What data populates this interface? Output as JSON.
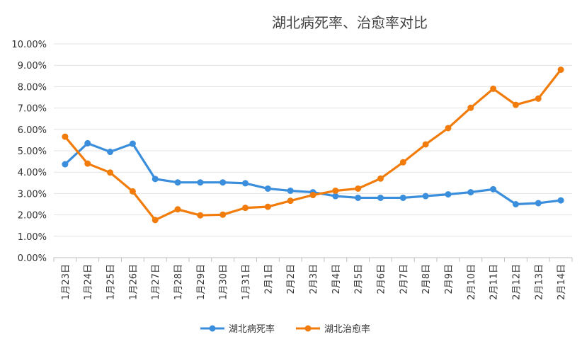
{
  "chart_data": {
    "type": "line",
    "title": "湖北病死率、治愈率对比",
    "categories": [
      "1月23日",
      "1月24日",
      "1月25日",
      "1月26日",
      "1月27日",
      "1月28日",
      "1月29日",
      "1月30日",
      "1月31日",
      "2月1日",
      "2月2日",
      "2月3日",
      "2月4日",
      "2月5日",
      "2月6日",
      "2月7日",
      "2月8日",
      "2月9日",
      "2月10日",
      "2月11日",
      "2月12日",
      "2月13日",
      "2月14日"
    ],
    "yticks": [
      "0.00%",
      "1.00%",
      "2.00%",
      "3.00%",
      "4.00%",
      "5.00%",
      "6.00%",
      "7.00%",
      "8.00%",
      "9.00%",
      "10.00%"
    ],
    "ylim": [
      0,
      10
    ],
    "grid": true,
    "legend_position": "bottom",
    "series": [
      {
        "name": "湖北病死率",
        "color": "#3A8EDB",
        "values": [
          4.37,
          5.35,
          4.95,
          5.33,
          3.68,
          3.52,
          3.52,
          3.52,
          3.48,
          3.23,
          3.13,
          3.06,
          2.88,
          2.8,
          2.8,
          2.8,
          2.88,
          2.96,
          3.06,
          3.2,
          2.5,
          2.55,
          2.68
        ]
      },
      {
        "name": "湖北治愈率",
        "color": "#F27C0B",
        "values": [
          5.66,
          4.4,
          3.98,
          3.1,
          1.76,
          2.26,
          1.98,
          2.01,
          2.33,
          2.38,
          2.66,
          2.93,
          3.13,
          3.23,
          3.7,
          4.46,
          5.3,
          6.06,
          7.01,
          7.9,
          7.15,
          7.44,
          8.79
        ]
      }
    ]
  }
}
